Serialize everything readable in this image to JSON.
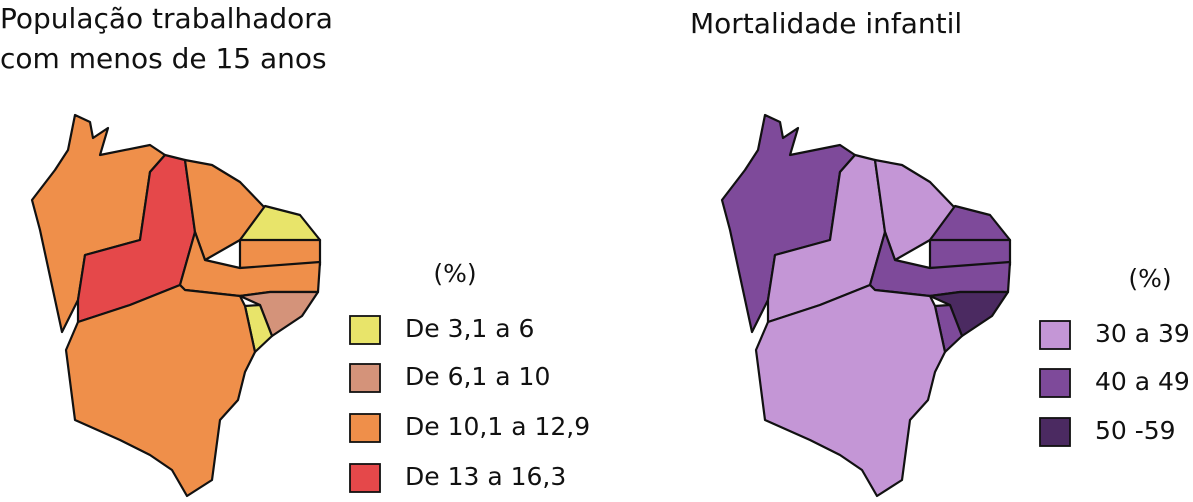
{
  "maps": [
    {
      "title_lines": [
        "População trabalhadora",
        "com menos de 15 anos"
      ],
      "legend": {
        "title": "(%)",
        "items": [
          {
            "label": "De 3,1 a 6",
            "color": "#e8e46a"
          },
          {
            "label": "De 6,1 a 10",
            "color": "#d4937a"
          },
          {
            "label": "De 10,1 a 12,9",
            "color": "#ef8f4a"
          },
          {
            "label": "De 13 a 16,3",
            "color": "#e5484a"
          }
        ]
      }
    },
    {
      "title_lines": [
        "Mortalidade infantil"
      ],
      "legend": {
        "title": "(%)",
        "items": [
          {
            "label": "30  a 39",
            "color": "#c496d6"
          },
          {
            "label": "40 a 49",
            "color": "#7e4a9a"
          },
          {
            "label": "50 -59",
            "color": "#4b2a61"
          }
        ]
      }
    }
  ]
}
